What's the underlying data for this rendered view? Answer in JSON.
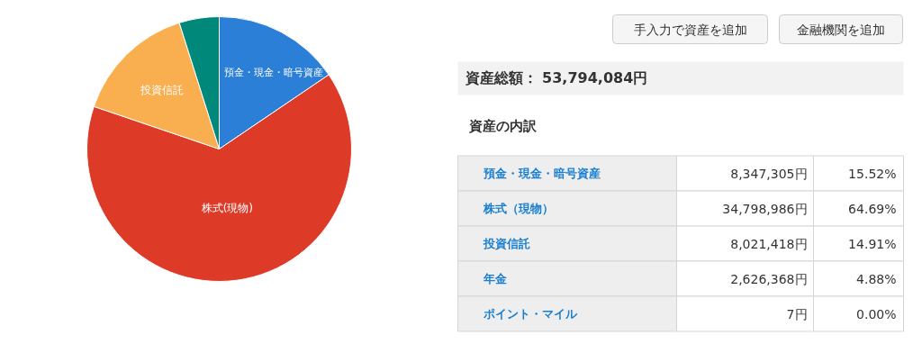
{
  "chart_data": {
    "type": "pie",
    "categories": [
      "預金・現金・暗号資産",
      "株式(現物)",
      "投資信託",
      null
    ],
    "values": [
      15.52,
      64.69,
      14.91,
      4.88
    ],
    "colors": [
      "#2b7fd6",
      "#dd3a28",
      "#f9ae4f",
      "#00897b"
    ],
    "annotations": [
      "手入力で資産を追加",
      "金融機関を追加",
      "資産総額： 53,794,084円",
      "資産の内訳",
      "預金・現金・暗号資産",
      "8,347,305円",
      "15.52%",
      "株式（現物）",
      "34,798,986円",
      "64.69%",
      "投資信託",
      "8,021,418円",
      "14.91%",
      "年金",
      "2,626,368円",
      "4.88%",
      "ポイント・マイル",
      "7円",
      "0.00%"
    ]
  }
}
